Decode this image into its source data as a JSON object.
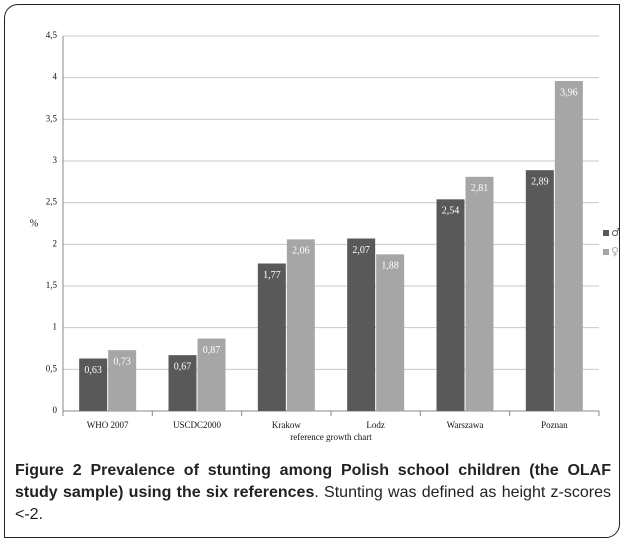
{
  "chart_data": {
    "type": "bar",
    "categories": [
      "WHO 2007",
      "USCDC2000",
      "Krakow",
      "Lodz",
      "Warszawa",
      "Poznan"
    ],
    "series": [
      {
        "name": "♂",
        "color": "#595959",
        "values": [
          0.63,
          0.67,
          1.77,
          2.07,
          2.54,
          2.89
        ],
        "value_labels": [
          "0,63",
          "0,67",
          "1,77",
          "2,07",
          "2,54",
          "2,89"
        ]
      },
      {
        "name": "♀",
        "color": "#a6a6a6",
        "values": [
          0.73,
          0.87,
          2.06,
          1.88,
          2.81,
          3.96
        ],
        "value_labels": [
          "0,73",
          "0,87",
          "2,06",
          "1,88",
          "2,81",
          "3,96"
        ]
      }
    ],
    "y_label": "%",
    "x_label": "reference growth chart",
    "ylim": [
      0,
      4.5
    ],
    "yticks": [
      0,
      {
        "value": 0.5,
        "label": "0,5"
      },
      1,
      {
        "value": 1.5,
        "label": "1,5"
      },
      2,
      {
        "value": 2.5,
        "label": "2,5"
      },
      3,
      {
        "value": 3.5,
        "label": "3,5"
      },
      4,
      {
        "value": 4.5,
        "label": "4,5"
      }
    ],
    "grid": true,
    "legend": "right",
    "caption_title": "Figure 2 Prevalence of stunting among Polish school children (the OLAF study sample) using the six references",
    "caption_text": ". Stunting was defined as height z-scores <-2."
  }
}
